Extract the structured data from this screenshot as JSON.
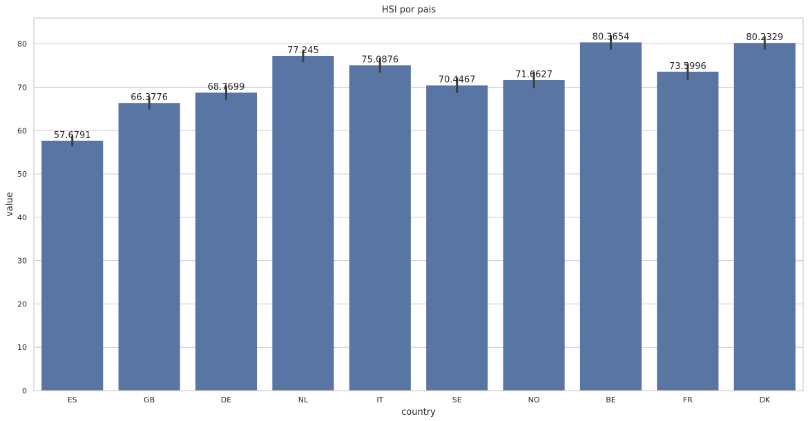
{
  "chart_data": {
    "type": "bar",
    "title": "HSI por pais",
    "xlabel": "country",
    "ylabel": "value",
    "ylim": [
      0,
      86
    ],
    "yticks": [
      0,
      10,
      20,
      30,
      40,
      50,
      60,
      70,
      80
    ],
    "grid": true,
    "bar_color": "#5875a4",
    "categories": [
      "ES",
      "GB",
      "DE",
      "NL",
      "IT",
      "SE",
      "NO",
      "BE",
      "FR",
      "DK"
    ],
    "values": [
      57.6791,
      66.3776,
      68.7699,
      77.245,
      75.0876,
      70.4467,
      71.6627,
      80.3654,
      73.5996,
      80.2329
    ],
    "value_labels": [
      "57.6791",
      "66.3776",
      "68.7699",
      "77.245",
      "75.0876",
      "70.4467",
      "71.6627",
      "80.3654",
      "73.5996",
      "80.2329"
    ],
    "error_low": [
      56.6,
      65.1,
      67.3,
      76.0,
      73.6,
      68.9,
      70.0,
      78.9,
      71.9,
      78.9
    ],
    "error_high": [
      58.7,
      67.7,
      70.2,
      78.5,
      76.6,
      72.1,
      73.4,
      81.8,
      75.3,
      81.6
    ]
  }
}
